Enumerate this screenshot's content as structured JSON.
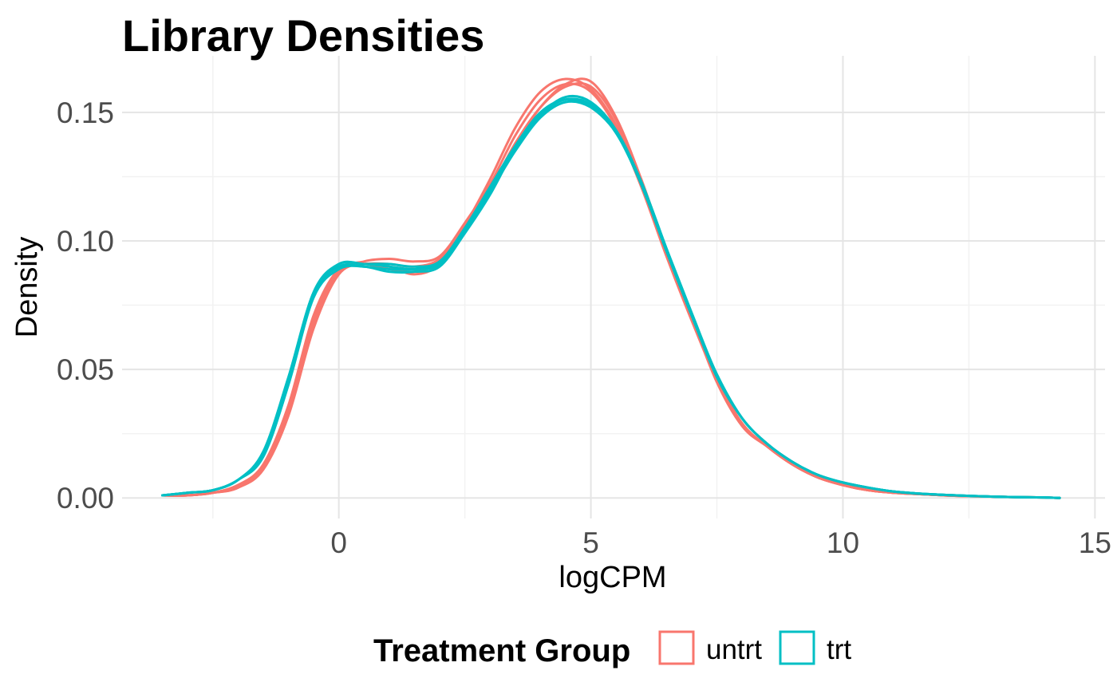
{
  "chart_data": {
    "type": "line",
    "title": "Library Densities",
    "xlabel": "logCPM",
    "ylabel": "Density",
    "xlim": [
      -4.3,
      15.2
    ],
    "ylim": [
      -0.008,
      0.172
    ],
    "x_ticks": [
      0,
      5,
      10,
      15
    ],
    "x_tick_labels": [
      "0",
      "5",
      "10",
      "15"
    ],
    "y_ticks": [
      0.0,
      0.05,
      0.1,
      0.15
    ],
    "y_tick_labels": [
      "0.00",
      "0.05",
      "0.10",
      "0.15"
    ],
    "grid": true,
    "legend": {
      "title": "Treatment Group",
      "position": "bottom",
      "entries": [
        {
          "label": "untrt",
          "color": "#F8766D"
        },
        {
          "label": "trt",
          "color": "#00BFC4"
        }
      ]
    },
    "x": [
      -3.5,
      -3.0,
      -2.5,
      -2.0,
      -1.5,
      -1.0,
      -0.5,
      0.0,
      0.5,
      1.0,
      1.5,
      2.0,
      2.5,
      3.0,
      3.5,
      4.0,
      4.5,
      5.0,
      5.5,
      6.0,
      6.5,
      7.0,
      7.5,
      8.0,
      8.5,
      9.0,
      9.5,
      10.0,
      10.5,
      11.0,
      11.5,
      12.0,
      12.5,
      13.0,
      13.5,
      14.0,
      14.3
    ],
    "series": [
      {
        "group": "untrt",
        "color": "#F8766D",
        "values": [
          0.001,
          0.001,
          0.002,
          0.004,
          0.011,
          0.032,
          0.066,
          0.087,
          0.091,
          0.09,
          0.087,
          0.091,
          0.106,
          0.124,
          0.144,
          0.158,
          0.163,
          0.159,
          0.145,
          0.122,
          0.095,
          0.07,
          0.045,
          0.028,
          0.02,
          0.013,
          0.008,
          0.005,
          0.003,
          0.002,
          0.0015,
          0.001,
          0.0007,
          0.0005,
          0.0003,
          0.0002,
          0.0
        ]
      },
      {
        "group": "untrt",
        "color": "#F8766D",
        "values": [
          0.001,
          0.001,
          0.002,
          0.005,
          0.012,
          0.034,
          0.068,
          0.088,
          0.092,
          0.093,
          0.092,
          0.094,
          0.107,
          0.122,
          0.141,
          0.155,
          0.161,
          0.158,
          0.144,
          0.121,
          0.094,
          0.069,
          0.046,
          0.029,
          0.02,
          0.013,
          0.008,
          0.005,
          0.003,
          0.002,
          0.0015,
          0.001,
          0.0007,
          0.0005,
          0.0003,
          0.0002,
          0.0
        ]
      },
      {
        "group": "untrt",
        "color": "#F8766D",
        "values": [
          0.001,
          0.001,
          0.002,
          0.004,
          0.012,
          0.035,
          0.07,
          0.088,
          0.091,
          0.091,
          0.09,
          0.093,
          0.105,
          0.12,
          0.138,
          0.152,
          0.16,
          0.16,
          0.147,
          0.123,
          0.095,
          0.07,
          0.046,
          0.028,
          0.02,
          0.013,
          0.008,
          0.005,
          0.003,
          0.002,
          0.0015,
          0.001,
          0.0007,
          0.0005,
          0.0003,
          0.0002,
          0.0
        ]
      },
      {
        "group": "untrt",
        "color": "#F8766D",
        "values": [
          0.001,
          0.001,
          0.002,
          0.005,
          0.013,
          0.036,
          0.071,
          0.089,
          0.091,
          0.089,
          0.088,
          0.092,
          0.104,
          0.119,
          0.137,
          0.152,
          0.161,
          0.162,
          0.148,
          0.124,
          0.096,
          0.071,
          0.047,
          0.029,
          0.02,
          0.013,
          0.008,
          0.005,
          0.003,
          0.002,
          0.0015,
          0.001,
          0.0007,
          0.0005,
          0.0003,
          0.0002,
          0.0
        ]
      },
      {
        "group": "trt",
        "color": "#00BFC4",
        "values": [
          0.001,
          0.002,
          0.003,
          0.007,
          0.017,
          0.045,
          0.079,
          0.09,
          0.09,
          0.089,
          0.089,
          0.092,
          0.104,
          0.119,
          0.135,
          0.148,
          0.154,
          0.152,
          0.143,
          0.123,
          0.097,
          0.072,
          0.048,
          0.031,
          0.021,
          0.014,
          0.009,
          0.006,
          0.004,
          0.0025,
          0.0017,
          0.0012,
          0.0008,
          0.0005,
          0.0003,
          0.0002,
          0.0
        ]
      },
      {
        "group": "trt",
        "color": "#00BFC4",
        "values": [
          0.001,
          0.002,
          0.003,
          0.007,
          0.018,
          0.047,
          0.08,
          0.091,
          0.091,
          0.091,
          0.09,
          0.092,
          0.105,
          0.121,
          0.137,
          0.15,
          0.155,
          0.152,
          0.142,
          0.122,
          0.096,
          0.071,
          0.048,
          0.031,
          0.021,
          0.014,
          0.009,
          0.006,
          0.004,
          0.0025,
          0.0017,
          0.0012,
          0.0008,
          0.0005,
          0.0003,
          0.0002,
          0.0
        ]
      },
      {
        "group": "trt",
        "color": "#00BFC4",
        "values": [
          0.001,
          0.002,
          0.003,
          0.007,
          0.016,
          0.044,
          0.078,
          0.089,
          0.09,
          0.088,
          0.088,
          0.09,
          0.103,
          0.118,
          0.136,
          0.149,
          0.156,
          0.154,
          0.143,
          0.122,
          0.096,
          0.071,
          0.048,
          0.031,
          0.021,
          0.014,
          0.009,
          0.006,
          0.004,
          0.0025,
          0.0017,
          0.0012,
          0.0008,
          0.0005,
          0.0003,
          0.0002,
          0.0
        ]
      },
      {
        "group": "trt",
        "color": "#00BFC4",
        "values": [
          0.001,
          0.002,
          0.003,
          0.007,
          0.017,
          0.046,
          0.08,
          0.091,
          0.091,
          0.09,
          0.089,
          0.091,
          0.104,
          0.12,
          0.136,
          0.149,
          0.155,
          0.153,
          0.142,
          0.123,
          0.097,
          0.071,
          0.047,
          0.031,
          0.021,
          0.014,
          0.009,
          0.006,
          0.004,
          0.0025,
          0.0017,
          0.0012,
          0.0008,
          0.0005,
          0.0003,
          0.0002,
          0.0
        ]
      }
    ]
  }
}
